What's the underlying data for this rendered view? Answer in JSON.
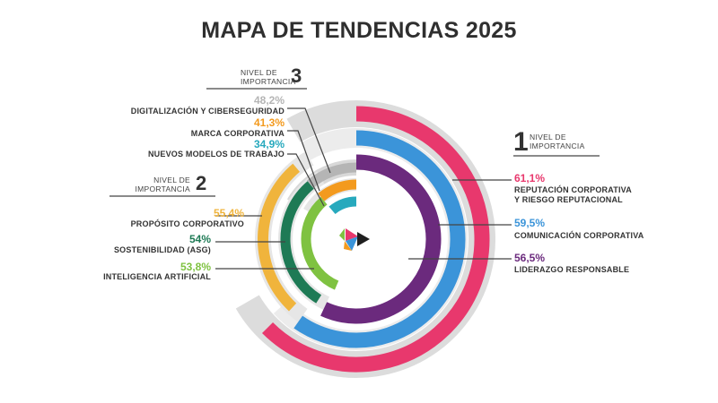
{
  "title": "MAPA DE TENDENCIAS 2025",
  "levels": {
    "l1": {
      "number": "1",
      "text1": "NIVEL DE",
      "text2": "IMPORTANCIA"
    },
    "l2": {
      "number": "2",
      "text1": "NIVEL DE",
      "text2": "IMPORTANCIA"
    },
    "l3": {
      "number": "3",
      "text1": "NIVEL DE",
      "text2": "IMPORTANCIA"
    }
  },
  "items": [
    {
      "key": "reputacion",
      "pct": "61,1%",
      "value": 61.1,
      "label1": "REPUTACIÓN CORPORATIVA",
      "label2": "Y RIESGO REPUTACIONAL",
      "color": "#e8386d",
      "level": 1
    },
    {
      "key": "comunicacion",
      "pct": "59,5%",
      "value": 59.5,
      "label1": "COMUNICACIÓN CORPORATIVA",
      "label2": "",
      "color": "#3b94d9",
      "level": 1
    },
    {
      "key": "liderazgo",
      "pct": "56,5%",
      "value": 56.5,
      "label1": "LIDERAZGO RESPONSABLE",
      "label2": "",
      "color": "#6b2a7d",
      "level": 1
    },
    {
      "key": "proposito",
      "pct": "55,4%",
      "value": 55.4,
      "label1": "PROPÓSITO CORPORATIVO",
      "label2": "",
      "color": "#f0b43c",
      "level": 2
    },
    {
      "key": "sostenibilidad",
      "pct": "54%",
      "value": 54,
      "label1": "SOSTENIBILIDAD (ASG)",
      "label2": "",
      "color": "#1e7a55",
      "level": 2
    },
    {
      "key": "ia",
      "pct": "53,8%",
      "value": 53.8,
      "label1": "INTELIGENCIA ARTIFICIAL",
      "label2": "",
      "color": "#7fc241",
      "level": 2
    },
    {
      "key": "digitalizacion",
      "pct": "48,2%",
      "value": 48.2,
      "label1": "DIGITALIZACIÓN Y CIBERSEGURIDAD",
      "label2": "",
      "color": "#b5b5b5",
      "level": 3
    },
    {
      "key": "marca",
      "pct": "41,3%",
      "value": 41.3,
      "label1": "MARCA CORPORATIVA",
      "label2": "",
      "color": "#f39a1e",
      "level": 3
    },
    {
      "key": "modelos",
      "pct": "34,9%",
      "value": 34.9,
      "label1": "NUEVOS MODELOS DE TRABAJO",
      "label2": "",
      "color": "#27a9bd",
      "level": 3
    }
  ],
  "chart_data": {
    "type": "radial bar",
    "title": "MAPA DE TENDENCIAS 2025",
    "categories": [
      "REPUTACIÓN CORPORATIVA Y RIESGO REPUTACIONAL",
      "COMUNICACIÓN CORPORATIVA",
      "LIDERAZGO RESPONSABLE",
      "PROPÓSITO CORPORATIVO",
      "SOSTENIBILIDAD (ASG)",
      "INTELIGENCIA ARTIFICIAL",
      "DIGITALIZACIÓN Y CIBERSEGURIDAD",
      "MARCA CORPORATIVA",
      "NUEVOS MODELOS DE TRABAJO"
    ],
    "values": [
      61.1,
      59.5,
      56.5,
      55.4,
      54,
      53.8,
      48.2,
      41.3,
      34.9
    ],
    "groups": [
      1,
      1,
      1,
      2,
      2,
      2,
      3,
      3,
      3
    ]
  },
  "colors": {
    "track": "#dcdcdc",
    "text": "#333333",
    "logo1": "#e8386d",
    "logo2": "#3b94d9",
    "logo3": "#7fc241",
    "logo4": "#f39a1e",
    "logo5": "#1f1f1f"
  }
}
